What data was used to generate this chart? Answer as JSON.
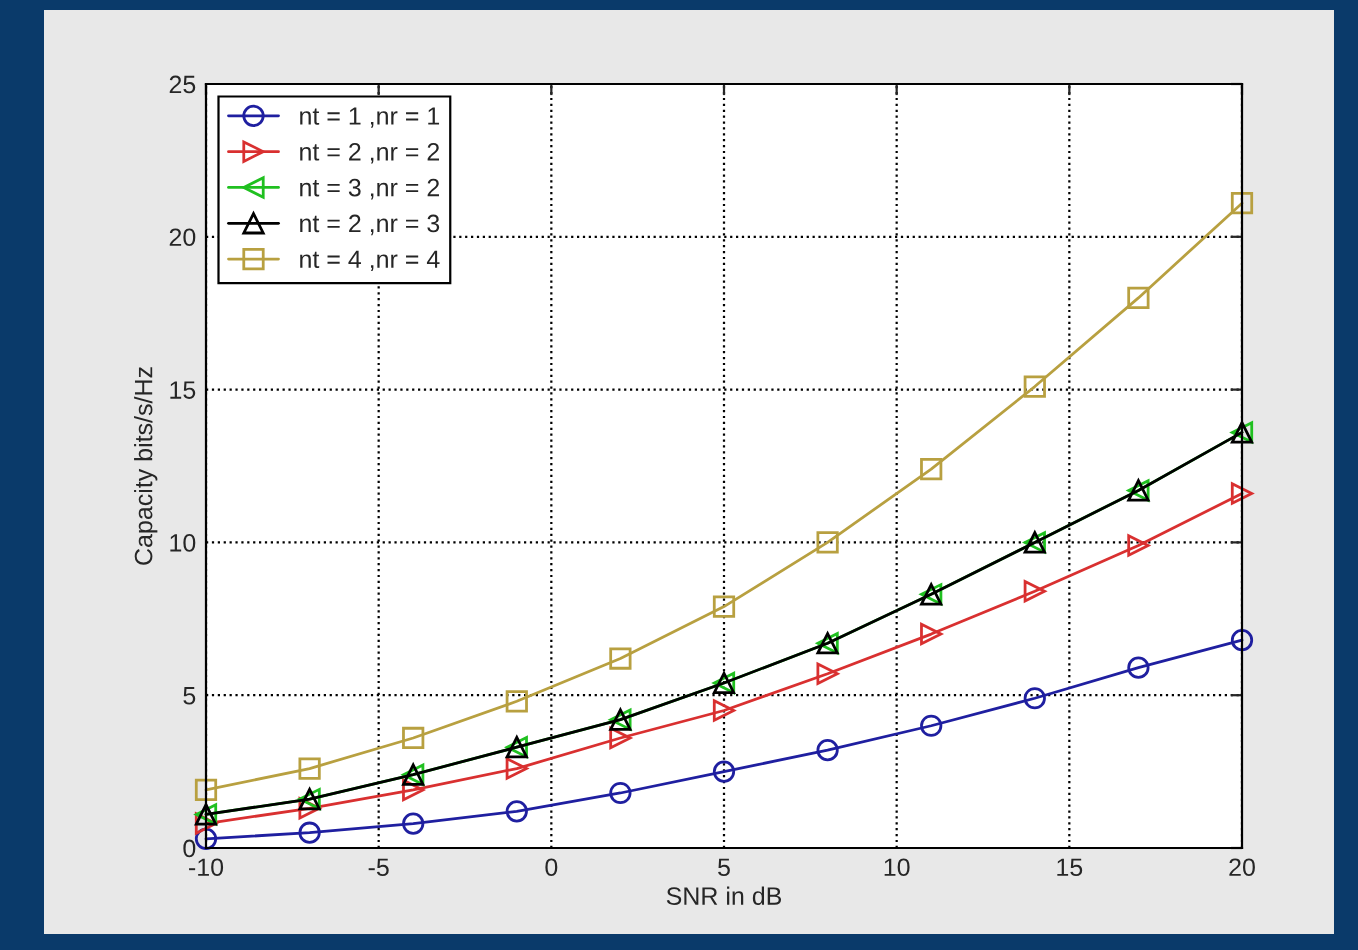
{
  "chart_data": {
    "type": "line",
    "xlabel": "SNR in dB",
    "ylabel": "Capacity bits/s/Hz",
    "x": [
      -10,
      -7,
      -4,
      -1,
      2,
      5,
      8,
      11,
      14,
      17,
      20
    ],
    "series": [
      {
        "name": "nt = 1 ,nr = 1",
        "color": "#1f1fa0",
        "marker": "circle",
        "values": [
          0.3,
          0.5,
          0.8,
          1.2,
          1.8,
          2.5,
          3.2,
          4.0,
          4.9,
          5.9,
          6.8
        ]
      },
      {
        "name": "nt = 2 ,nr = 2",
        "color": "#d93030",
        "marker": "triangle-right",
        "values": [
          0.8,
          1.3,
          1.9,
          2.6,
          3.6,
          4.5,
          5.7,
          7.0,
          8.4,
          9.9,
          11.6
        ]
      },
      {
        "name": "nt = 3 ,nr = 2",
        "color": "#20c020",
        "marker": "triangle-left",
        "values": [
          1.1,
          1.6,
          2.4,
          3.3,
          4.2,
          5.4,
          6.7,
          8.3,
          10.0,
          11.7,
          13.6
        ]
      },
      {
        "name": "nt = 2 ,nr = 3",
        "color": "#000000",
        "marker": "triangle",
        "values": [
          1.1,
          1.6,
          2.4,
          3.3,
          4.2,
          5.4,
          6.7,
          8.3,
          10.0,
          11.7,
          13.6
        ]
      },
      {
        "name": "nt = 4 ,nr = 4",
        "color": "#b8a040",
        "marker": "square",
        "values": [
          1.9,
          2.6,
          3.6,
          4.8,
          6.2,
          7.9,
          10.0,
          12.4,
          15.1,
          18.0,
          21.1
        ]
      }
    ],
    "xlim": [
      -10,
      20
    ],
    "xticks": [
      -10,
      -5,
      0,
      5,
      10,
      15,
      20
    ],
    "ylim": [
      0,
      25
    ],
    "yticks": [
      0,
      5,
      10,
      15,
      20,
      25
    ],
    "grid": true,
    "legend": "top left",
    "line_style": "solid"
  }
}
